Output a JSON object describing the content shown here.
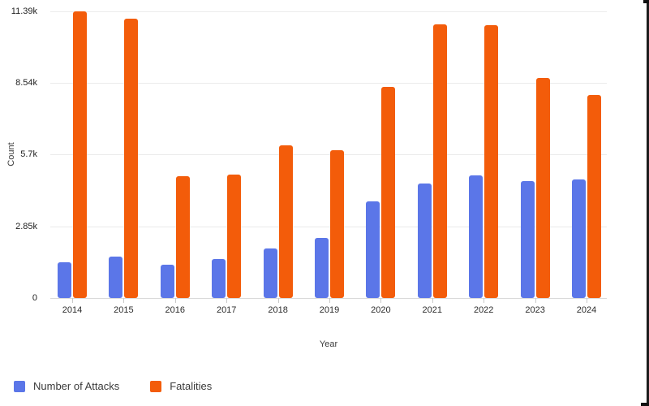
{
  "chart_data": {
    "type": "bar",
    "title": "",
    "xlabel": "Year",
    "ylabel": "Count",
    "categories": [
      "2014",
      "2015",
      "2016",
      "2017",
      "2018",
      "2019",
      "2020",
      "2021",
      "2022",
      "2023",
      "2024"
    ],
    "series": [
      {
        "name": "Number of Attacks",
        "color": "#5b76e8",
        "values": [
          1430,
          1650,
          1320,
          1560,
          1970,
          2400,
          3850,
          4550,
          4880,
          4650,
          4720
        ]
      },
      {
        "name": "Fatalities",
        "color": "#f35c0a",
        "values": [
          11390,
          11110,
          4850,
          4900,
          6050,
          5880,
          8400,
          10880,
          10850,
          8750,
          8070
        ]
      }
    ],
    "y_ticks": [
      {
        "label": "0",
        "value": 0
      },
      {
        "label": "2.85k",
        "value": 2850
      },
      {
        "label": "5.7k",
        "value": 5700
      },
      {
        "label": "8.54k",
        "value": 8540
      },
      {
        "label": "11.39k",
        "value": 11390
      }
    ],
    "ylim": [
      0,
      11390
    ],
    "grid": "horizontal",
    "legend_position": "bottom-left"
  }
}
